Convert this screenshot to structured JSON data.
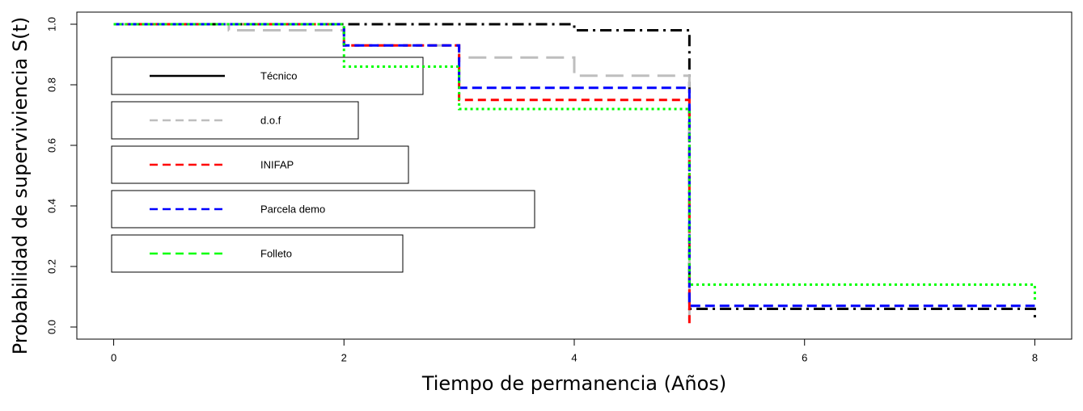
{
  "chart_data": {
    "type": "step",
    "x_label": "Tiempo de permanencia (Años)",
    "y_label": "Probabilidad de superviviencia S(t)",
    "xlim": [
      -0.32,
      8.32
    ],
    "xticks": [
      0,
      2,
      4,
      6,
      8
    ],
    "ylim": [
      -0.04,
      1.04
    ],
    "yticks": [
      {
        "value": 0,
        "label": "0.0"
      },
      0.2,
      0.4,
      0.6,
      0.8,
      {
        "value": 1,
        "label": "1.0"
      }
    ],
    "series": [
      {
        "name": "Técnico",
        "color": "#000000",
        "x": [
          0,
          4,
          5,
          8
        ],
        "values": [
          1,
          0.98,
          0.06,
          0.02
        ]
      },
      {
        "name": "d.o.f",
        "color": "#bebebe",
        "x": [
          0,
          1,
          2,
          3,
          4,
          5
        ],
        "values": [
          1,
          0.98,
          0.93,
          0.89,
          0.83,
          0
        ]
      },
      {
        "name": "INIFAP",
        "color": "#ff0000",
        "x": [
          0,
          2,
          3,
          5
        ],
        "values": [
          1,
          0.93,
          0.75,
          0
        ]
      },
      {
        "name": "Parcela demo",
        "color": "#0000ff",
        "x": [
          0,
          2,
          3,
          5,
          8
        ],
        "values": [
          1,
          0.93,
          0.79,
          0.07,
          0.07
        ]
      },
      {
        "name": "Folleto",
        "color": "#00ff00",
        "x": [
          0,
          2,
          3,
          5,
          8
        ],
        "values": [
          1,
          0.86,
          0.72,
          0.14,
          0.09
        ]
      }
    ]
  }
}
